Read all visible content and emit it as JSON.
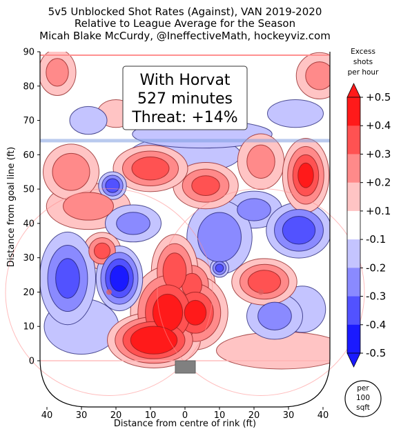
{
  "chart_data": {
    "type": "heatmap",
    "title": [
      "5v5 Unblocked Shot Rates (Against), VAN 2019-2020",
      "Relative to League Average for the Season",
      "Micah Blake McCurdy, @IneffectiveMath, hockeyviz.com"
    ],
    "xlabel": "Distance from centre of rink (ft)",
    "ylabel": "Distance from goal line (ft)",
    "x_ticks": [
      "40",
      "30",
      "20",
      "10",
      "0",
      "10",
      "20",
      "30",
      "40"
    ],
    "y_ticks": [
      "0",
      "10",
      "20",
      "30",
      "40",
      "50",
      "60",
      "70",
      "80",
      "90"
    ],
    "xlim": [
      -40,
      40
    ],
    "ylim": [
      -11,
      90
    ],
    "annotation": [
      "With Horvat",
      "527 minutes",
      "Threat: +14%"
    ],
    "colorbar": {
      "title": [
        "Excess",
        "shots",
        "per hour"
      ],
      "tick_labels": [
        "+0.5",
        "+0.4",
        "+0.3",
        "+0.2",
        "+0.1",
        "-0.1",
        "-0.2",
        "-0.3",
        "-0.4",
        "-0.5"
      ],
      "levels": [
        0.5,
        0.4,
        0.3,
        0.2,
        0.1,
        -0.1,
        -0.2,
        -0.3,
        -0.4,
        -0.5
      ],
      "colors": [
        "#ff1a1a",
        "#ff5252",
        "#ff8a8a",
        "#ffc4c4",
        "#ffffff",
        "#c4c4ff",
        "#8a8aff",
        "#5252ff",
        "#1a1aff"
      ],
      "unit_label": [
        "per",
        "100",
        "sqft"
      ]
    },
    "blobs": [
      {
        "x": -9,
        "y": 6,
        "rx": 10,
        "ry": 6,
        "level": 0.55
      },
      {
        "x": -5,
        "y": 14,
        "rx": 8,
        "ry": 10,
        "level": 0.45
      },
      {
        "x": 3,
        "y": 14,
        "rx": 7,
        "ry": 8,
        "level": 0.4
      },
      {
        "x": -3,
        "y": 26,
        "rx": 5,
        "ry": 8,
        "level": 0.35
      },
      {
        "x": 2,
        "y": 22,
        "rx": 5,
        "ry": 6,
        "level": 0.3
      },
      {
        "x": -10,
        "y": 56,
        "rx": 8,
        "ry": 5,
        "level": 0.35
      },
      {
        "x": 6,
        "y": 51,
        "rx": 7,
        "ry": 5,
        "level": 0.3
      },
      {
        "x": 35,
        "y": 54,
        "rx": 5,
        "ry": 8,
        "level": 0.4
      },
      {
        "x": -33,
        "y": 55,
        "rx": 6,
        "ry": 6,
        "level": 0.25
      },
      {
        "x": -28,
        "y": 45,
        "rx": 9,
        "ry": 5,
        "level": 0.2
      },
      {
        "x": 23,
        "y": 23,
        "rx": 7,
        "ry": 5,
        "level": 0.35
      },
      {
        "x": -24,
        "y": 32,
        "rx": 4,
        "ry": 4,
        "level": 0.3
      },
      {
        "x": 22,
        "y": 58,
        "rx": 5,
        "ry": 6,
        "level": 0.2
      },
      {
        "x": -37,
        "y": 84,
        "rx": 4,
        "ry": 5,
        "level": 0.2
      },
      {
        "x": 39,
        "y": 83,
        "rx": 5,
        "ry": 5,
        "level": 0.2
      },
      {
        "x": 28,
        "y": 3,
        "rx": 14,
        "ry": 4,
        "level": 0.15
      },
      {
        "x": -20,
        "y": 72,
        "rx": 4,
        "ry": 3,
        "level": 0.15
      },
      {
        "x": -19,
        "y": 24,
        "rx": 5,
        "ry": 7,
        "level": -0.45
      },
      {
        "x": -34,
        "y": 24,
        "rx": 6,
        "ry": 10,
        "level": -0.3
      },
      {
        "x": 33,
        "y": 38,
        "rx": 7,
        "ry": 6,
        "level": -0.35
      },
      {
        "x": -21,
        "y": 51,
        "rx": 3,
        "ry": 3,
        "level": -0.35
      },
      {
        "x": 10,
        "y": 36,
        "rx": 7,
        "ry": 8,
        "level": -0.25
      },
      {
        "x": 20,
        "y": 44,
        "rx": 6,
        "ry": 4,
        "level": -0.2
      },
      {
        "x": -15,
        "y": 40,
        "rx": 6,
        "ry": 4,
        "level": -0.2
      },
      {
        "x": 26,
        "y": 13,
        "rx": 6,
        "ry": 5,
        "level": -0.2
      },
      {
        "x": 34,
        "y": 15,
        "rx": 5,
        "ry": 5,
        "level": -0.15
      },
      {
        "x": 10,
        "y": 27,
        "rx": 2,
        "ry": 2,
        "level": -0.3
      },
      {
        "x": -30,
        "y": 10,
        "rx": 8,
        "ry": 6,
        "level": -0.15
      },
      {
        "x": 0,
        "y": 60,
        "rx": 12,
        "ry": 4,
        "level": -0.15
      },
      {
        "x": 32,
        "y": 72,
        "rx": 6,
        "ry": 3,
        "level": -0.15
      },
      {
        "x": -28,
        "y": 70,
        "rx": 4,
        "ry": 3,
        "level": -0.15
      },
      {
        "x": 5,
        "y": 66,
        "rx": 15,
        "ry": 3,
        "level": -0.15
      }
    ]
  }
}
